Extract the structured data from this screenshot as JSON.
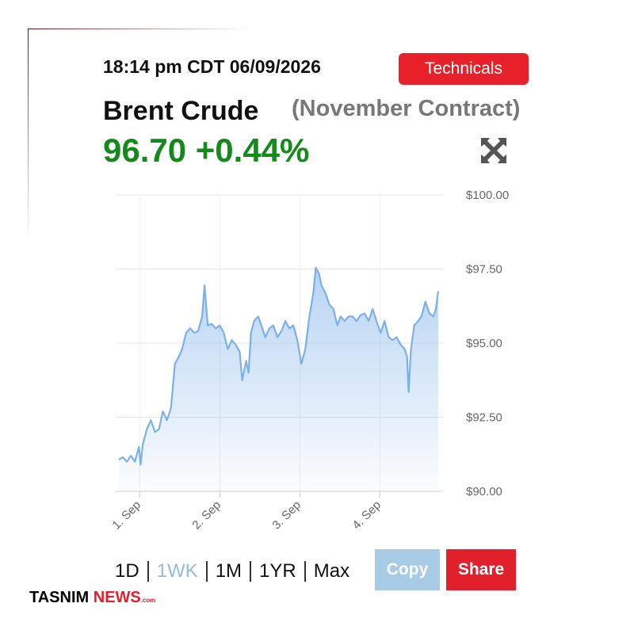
{
  "header": {
    "timestamp": "18:14 pm CDT 06/09/2026",
    "button": "Technicals",
    "name": "Brent Crude",
    "contract": "(November Contract)",
    "price": "96.70 +0.44%"
  },
  "chart_data": {
    "type": "area",
    "color": "#7cb0e8",
    "grid": true,
    "x": [
      0.74,
      0.79,
      0.84,
      0.89,
      0.94,
      0.99,
      1.01,
      1.04,
      1.09,
      1.14,
      1.19,
      1.24,
      1.29,
      1.34,
      1.39,
      1.44,
      1.49,
      1.53,
      1.58,
      1.63,
      1.68,
      1.73,
      1.78,
      1.81,
      1.85,
      1.9,
      1.95,
      2.0,
      2.05,
      2.1,
      2.15,
      2.2,
      2.25,
      2.28,
      2.33,
      2.36,
      2.39,
      2.43,
      2.48,
      2.52,
      2.57,
      2.62,
      2.67,
      2.72,
      2.77,
      2.82,
      2.87,
      2.92,
      2.97,
      3.02,
      3.07,
      3.12,
      3.17,
      3.2,
      3.24,
      3.27,
      3.32,
      3.37,
      3.42,
      3.47,
      3.51,
      3.56,
      3.61,
      3.66,
      3.71,
      3.76,
      3.81,
      3.86,
      3.91,
      3.97,
      4.01,
      4.06,
      4.11,
      4.16,
      4.21,
      4.26,
      4.31,
      4.34,
      4.36,
      4.39,
      4.43,
      4.48,
      4.52,
      4.57,
      4.62,
      4.67,
      4.7,
      4.73
    ],
    "values": [
      91.07,
      91.15,
      91.0,
      91.2,
      91.0,
      91.5,
      90.9,
      91.6,
      92.1,
      92.4,
      92.0,
      92.1,
      92.7,
      92.4,
      92.8,
      94.3,
      94.55,
      94.8,
      95.35,
      95.5,
      95.35,
      95.4,
      95.9,
      96.95,
      95.6,
      95.65,
      95.5,
      95.6,
      95.35,
      94.8,
      95.1,
      94.95,
      94.7,
      93.75,
      94.4,
      94.0,
      95.35,
      95.75,
      95.9,
      95.6,
      95.2,
      95.5,
      95.6,
      95.2,
      95.4,
      95.75,
      95.5,
      95.6,
      95.1,
      94.3,
      94.8,
      95.9,
      96.7,
      97.55,
      97.35,
      96.95,
      96.7,
      96.3,
      96.15,
      95.6,
      95.9,
      95.75,
      95.9,
      95.9,
      95.75,
      95.95,
      96.0,
      95.75,
      96.15,
      95.65,
      95.35,
      95.75,
      95.2,
      95.1,
      95.2,
      94.95,
      94.8,
      94.55,
      93.35,
      94.8,
      95.6,
      95.75,
      95.9,
      96.4,
      96.0,
      95.9,
      96.15,
      96.75
    ],
    "xlim": [
      0.7,
      4.76
    ],
    "xticks": [
      {
        "value": 1,
        "label": "1. Sep"
      },
      {
        "value": 2,
        "label": "2. Sep"
      },
      {
        "value": 3,
        "label": "3. Sep"
      },
      {
        "value": 4,
        "label": "4. Sep"
      }
    ],
    "ylim": [
      90,
      100
    ],
    "yticks": [
      {
        "value": 90,
        "label": "$90.00"
      },
      {
        "value": 92.5,
        "label": "$92.50"
      },
      {
        "value": 95,
        "label": "$95.00"
      },
      {
        "value": 97.5,
        "label": "$97.50"
      },
      {
        "value": 100,
        "label": "$100.00"
      }
    ]
  },
  "controls": {
    "ranges": [
      "1D",
      "1WK",
      "1M",
      "1YR",
      "Max"
    ],
    "active": 1,
    "copy": "Copy",
    "share": "Share"
  },
  "footer": {
    "brand": "TASNIM",
    "brand_accent": "NEWS",
    "domain": ".com"
  }
}
